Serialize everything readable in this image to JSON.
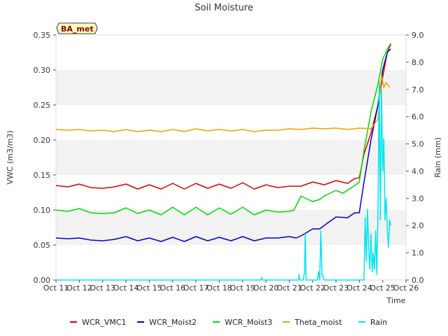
{
  "chart_data": {
    "type": "line",
    "title": "Soil Moisture",
    "site_label": "BA_met",
    "xlabel": "Time",
    "ylabel": "VWC (m3/m3)",
    "y2label": "Rain (mm)",
    "xlim": [
      11,
      26
    ],
    "ylim": [
      0.0,
      0.35
    ],
    "y2lim": [
      0.0,
      9.0
    ],
    "x_ticks": [
      11,
      12,
      13,
      14,
      15,
      16,
      17,
      18,
      19,
      20,
      21,
      22,
      23,
      24,
      25,
      26
    ],
    "x_tick_labels": [
      "Oct 11",
      "Oct 12",
      "Oct 13",
      "Oct 14",
      "Oct 15",
      "Oct 16",
      "Oct 17",
      "Oct 18",
      "Oct 19",
      "Oct 20",
      "Oct 21",
      "Oct 22",
      "Oct 23",
      "Oct 24",
      "Oct 25",
      "Oct 26"
    ],
    "y_ticks": [
      0.0,
      0.05,
      0.1,
      0.15,
      0.2,
      0.25,
      0.3,
      0.35
    ],
    "y_tick_labels": [
      "0.00",
      "0.05",
      "0.10",
      "0.15",
      "0.20",
      "0.25",
      "0.30",
      "0.35"
    ],
    "y2_ticks": [
      0,
      1,
      2,
      3,
      4,
      5,
      6,
      7,
      8,
      9
    ],
    "y2_tick_labels": [
      "0.0",
      "1.0",
      "2.0",
      "3.0",
      "4.0",
      "5.0",
      "6.0",
      "7.0",
      "8.0",
      "9.0"
    ],
    "grid": "horizontal alternating bands",
    "legend_position": "bottom",
    "series": [
      {
        "name": "WCR_VMC1",
        "axis": "left",
        "color": "#dd0000",
        "x": [
          11,
          11.5,
          12,
          12.5,
          13,
          13.5,
          14,
          14.5,
          15,
          15.5,
          16,
          16.5,
          17,
          17.5,
          18,
          18.5,
          19,
          19.5,
          20,
          20.5,
          21,
          21.5,
          22,
          22.5,
          23,
          23.5,
          23.8,
          24,
          24.2,
          24.5,
          24.8,
          25,
          25.2,
          25.35
        ],
        "y": [
          0.135,
          0.133,
          0.137,
          0.132,
          0.131,
          0.133,
          0.137,
          0.13,
          0.136,
          0.13,
          0.138,
          0.13,
          0.138,
          0.131,
          0.137,
          0.131,
          0.139,
          0.13,
          0.136,
          0.132,
          0.134,
          0.134,
          0.14,
          0.136,
          0.142,
          0.138,
          0.145,
          0.146,
          0.18,
          0.21,
          0.25,
          0.29,
          0.325,
          0.337
        ]
      },
      {
        "name": "WCR_Moist2",
        "axis": "left",
        "color": "#0000cc",
        "x": [
          11,
          11.5,
          12,
          12.5,
          13,
          13.5,
          14,
          14.5,
          15,
          15.5,
          16,
          16.5,
          17,
          17.5,
          18,
          18.5,
          19,
          19.5,
          20,
          20.5,
          21,
          21.3,
          21.5,
          22,
          22.3,
          22.5,
          23,
          23.5,
          23.8,
          24,
          24.2,
          24.5,
          24.8,
          25,
          25.2,
          25.35
        ],
        "y": [
          0.06,
          0.059,
          0.06,
          0.057,
          0.056,
          0.058,
          0.062,
          0.056,
          0.06,
          0.055,
          0.061,
          0.055,
          0.062,
          0.056,
          0.061,
          0.056,
          0.062,
          0.056,
          0.06,
          0.06,
          0.062,
          0.06,
          0.063,
          0.073,
          0.073,
          0.078,
          0.09,
          0.089,
          0.096,
          0.096,
          0.14,
          0.2,
          0.25,
          0.3,
          0.325,
          0.33
        ]
      },
      {
        "name": "WCR_Moist3",
        "axis": "left",
        "color": "#00dd00",
        "x": [
          11,
          11.5,
          12,
          12.5,
          13,
          13.5,
          14,
          14.5,
          15,
          15.5,
          16,
          16.5,
          17,
          17.5,
          18,
          18.5,
          19,
          19.5,
          20,
          20.5,
          21,
          21.2,
          21.5,
          22,
          22.3,
          22.5,
          23,
          23.3,
          23.8,
          24,
          24.2,
          24.5,
          24.8,
          25,
          25.2,
          25.35
        ],
        "y": [
          0.1,
          0.098,
          0.102,
          0.096,
          0.095,
          0.096,
          0.103,
          0.095,
          0.1,
          0.093,
          0.104,
          0.093,
          0.104,
          0.093,
          0.103,
          0.094,
          0.104,
          0.093,
          0.1,
          0.097,
          0.098,
          0.1,
          0.12,
          0.112,
          0.115,
          0.12,
          0.128,
          0.124,
          0.135,
          0.14,
          0.185,
          0.24,
          0.28,
          0.315,
          0.33,
          0.338
        ]
      },
      {
        "name": "Theta_moist",
        "axis": "left",
        "color": "#f0a000",
        "x": [
          11,
          11.5,
          12,
          12.5,
          13,
          13.5,
          14,
          14.5,
          15,
          15.5,
          16,
          16.5,
          17,
          17.5,
          18,
          18.5,
          19,
          19.5,
          20,
          20.5,
          21,
          21.5,
          22,
          22.5,
          23,
          23.5,
          24,
          24.5,
          24.8,
          24.95,
          25.05,
          25.15,
          25.3
        ],
        "y": [
          0.215,
          0.214,
          0.215,
          0.213,
          0.214,
          0.212,
          0.215,
          0.212,
          0.214,
          0.212,
          0.215,
          0.212,
          0.216,
          0.213,
          0.215,
          0.213,
          0.215,
          0.212,
          0.214,
          0.214,
          0.216,
          0.215,
          0.217,
          0.216,
          0.217,
          0.215,
          0.217,
          0.216,
          0.23,
          0.292,
          0.275,
          0.282,
          0.275
        ]
      },
      {
        "name": "Rain",
        "axis": "right",
        "color": "#00e5ee",
        "x": [
          11,
          19.8,
          19.82,
          19.84,
          20,
          21.4,
          21.42,
          21.44,
          21.6,
          21.65,
          21.68,
          21.72,
          21.85,
          22.2,
          22.25,
          22.3,
          22.35,
          22.4,
          22.5,
          24.2,
          24.25,
          24.3,
          24.35,
          24.4,
          24.45,
          24.5,
          24.55,
          24.6,
          24.65,
          24.7,
          24.75,
          24.8,
          24.85,
          24.9,
          24.95,
          25.0,
          25.05,
          25.1,
          25.15,
          25.2,
          25.25,
          25.3,
          25.35
        ],
        "y": [
          0,
          0,
          0.1,
          0,
          0,
          0,
          0.2,
          0,
          0,
          0.3,
          1.7,
          0,
          0,
          0,
          0.3,
          0,
          1.8,
          0.2,
          0,
          0,
          2.3,
          0.7,
          2.6,
          1.2,
          0.4,
          1.7,
          0.3,
          1.0,
          0.4,
          1.8,
          0.2,
          2.5,
          7.3,
          2.2,
          7.0,
          4.0,
          5.2,
          2.2,
          3.0,
          1.8,
          1.2,
          2.2,
          2.0
        ]
      }
    ]
  }
}
